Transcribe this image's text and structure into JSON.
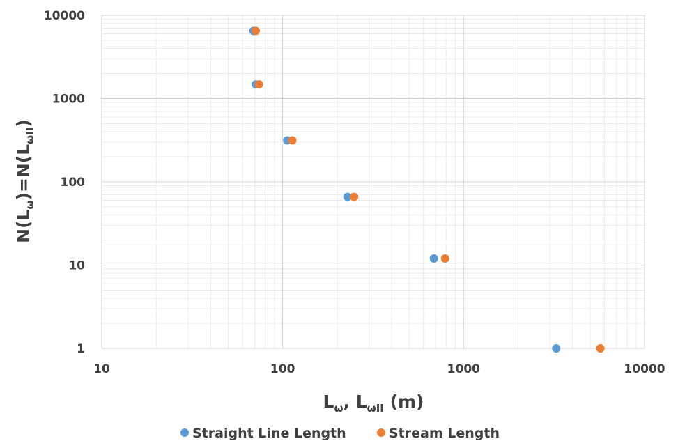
{
  "chart_data": {
    "type": "scatter",
    "x_scale": "log",
    "y_scale": "log",
    "xlim": [
      10,
      10000
    ],
    "ylim": [
      1,
      10000
    ],
    "grid": true,
    "legend_position": "bottom",
    "x_ticks": [
      "10",
      "100",
      "1000",
      "10000"
    ],
    "y_ticks": [
      "1",
      "10",
      "100",
      "1000",
      "10000"
    ],
    "xlabel": {
      "L1": "L",
      "sub1": "ω",
      "mid": ", L",
      "sub2": "ωII",
      "end": " (m)"
    },
    "ylabel": {
      "p1": "N(L",
      "sub1": "ω",
      "p2": ")=N(L",
      "sub2": "ωII",
      "p3": ")"
    },
    "series": [
      {
        "name": "Straight Line Length",
        "color": "#5B9BD5",
        "points": [
          {
            "x": 69,
            "y": 6500
          },
          {
            "x": 71,
            "y": 1480
          },
          {
            "x": 106,
            "y": 315
          },
          {
            "x": 228,
            "y": 66
          },
          {
            "x": 685,
            "y": 12
          },
          {
            "x": 3250,
            "y": 1
          }
        ]
      },
      {
        "name": "Stream Length",
        "color": "#ED7D31",
        "points": [
          {
            "x": 71,
            "y": 6500
          },
          {
            "x": 74,
            "y": 1480
          },
          {
            "x": 113,
            "y": 315
          },
          {
            "x": 248,
            "y": 66
          },
          {
            "x": 790,
            "y": 12
          },
          {
            "x": 5700,
            "y": 1
          }
        ]
      }
    ]
  }
}
